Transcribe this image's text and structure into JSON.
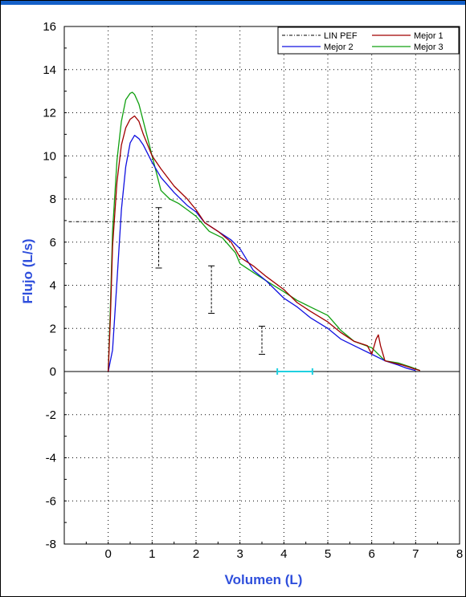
{
  "chart_data": {
    "type": "line",
    "xlabel": "Volumen (L)",
    "ylabel": "Flujo (L/s)",
    "xlim": [
      -1,
      8
    ],
    "ylim": [
      -8,
      16
    ],
    "x_ticks": [
      "0",
      "1",
      "2",
      "3",
      "4",
      "5",
      "6",
      "7",
      "8"
    ],
    "y_ticks": [
      "16",
      "14",
      "12",
      "10",
      "8",
      "6",
      "4",
      "2",
      "0",
      "-2",
      "-4",
      "-6",
      "-8"
    ],
    "grid": true,
    "legend_position": "top-right",
    "colors": {
      "lin_pef": "#000000",
      "mejor1": "#a00000",
      "mejor2": "#1010e0",
      "mejor3": "#10a010",
      "fvc_marker": "#20d0e0",
      "axis_title": "#2f4fdc"
    },
    "series": [
      {
        "name": "LIN PEF",
        "style": "dashdot",
        "x": [
          -0.9,
          8.0
        ],
        "y": [
          6.95,
          6.95
        ]
      },
      {
        "name": "Mejor 1",
        "x": [
          0,
          0.05,
          0.1,
          0.2,
          0.3,
          0.4,
          0.5,
          0.6,
          0.7,
          0.8,
          1.0,
          1.2,
          1.5,
          1.8,
          2.0,
          2.2,
          2.5,
          2.8,
          3.0,
          3.3,
          3.6,
          4.0,
          4.3,
          4.6,
          5.0,
          5.3,
          5.6,
          5.9,
          6.0,
          6.1,
          6.15,
          6.2,
          6.3,
          6.5,
          6.7,
          7.0,
          7.1
        ],
        "y": [
          0,
          2.5,
          5.8,
          8.8,
          10.5,
          11.3,
          11.7,
          11.85,
          11.6,
          11.0,
          10.0,
          9.4,
          8.6,
          8.0,
          7.5,
          6.9,
          6.5,
          6.0,
          5.3,
          4.9,
          4.4,
          3.8,
          3.2,
          2.8,
          2.3,
          1.8,
          1.4,
          1.2,
          0.8,
          1.5,
          1.7,
          1.2,
          0.5,
          0.4,
          0.3,
          0.1,
          0.05
        ]
      },
      {
        "name": "Mejor 2",
        "x": [
          0,
          0.1,
          0.2,
          0.3,
          0.4,
          0.5,
          0.6,
          0.7,
          0.8,
          1.0,
          1.2,
          1.5,
          1.8,
          2.0,
          2.2,
          2.5,
          2.8,
          3.0,
          3.3,
          3.6,
          4.0,
          4.3,
          4.6,
          5.0,
          5.3,
          5.6,
          6.0,
          6.3,
          6.6,
          6.8,
          7.0
        ],
        "y": [
          0,
          1.0,
          4.2,
          7.5,
          9.5,
          10.6,
          10.95,
          10.8,
          10.5,
          9.7,
          9.0,
          8.3,
          7.7,
          7.4,
          6.9,
          6.5,
          6.1,
          5.7,
          4.7,
          4.2,
          3.4,
          3.0,
          2.5,
          2.0,
          1.5,
          1.2,
          0.8,
          0.5,
          0.3,
          0.15,
          0.05
        ]
      },
      {
        "name": "Mejor 3",
        "x": [
          0,
          0.05,
          0.1,
          0.2,
          0.3,
          0.4,
          0.5,
          0.55,
          0.6,
          0.7,
          0.8,
          0.9,
          1.0,
          1.1,
          1.2,
          1.4,
          1.6,
          1.8,
          2.0,
          2.3,
          2.6,
          2.9,
          3.0,
          3.3,
          3.6,
          4.0,
          4.3,
          4.6,
          5.0,
          5.3,
          5.6,
          6.0,
          6.3,
          6.6,
          6.9,
          7.1
        ],
        "y": [
          0,
          3.0,
          6.5,
          9.8,
          11.6,
          12.6,
          12.9,
          12.95,
          12.85,
          12.4,
          11.6,
          10.8,
          10.0,
          9.2,
          8.4,
          8.0,
          7.8,
          7.5,
          7.2,
          6.5,
          6.2,
          5.5,
          5.0,
          4.6,
          4.2,
          3.7,
          3.3,
          3.0,
          2.6,
          1.9,
          1.4,
          1.1,
          0.5,
          0.4,
          0.2,
          0.05
        ]
      }
    ],
    "error_bars": [
      {
        "x": 1.15,
        "y_low": 4.8,
        "y_high": 7.6
      },
      {
        "x": 2.35,
        "y_low": 2.7,
        "y_high": 4.9
      },
      {
        "x": 3.5,
        "y_low": 0.8,
        "y_high": 2.1
      }
    ],
    "fvc_range": {
      "x_low": 3.85,
      "x_high": 4.65,
      "y": 0
    }
  }
}
